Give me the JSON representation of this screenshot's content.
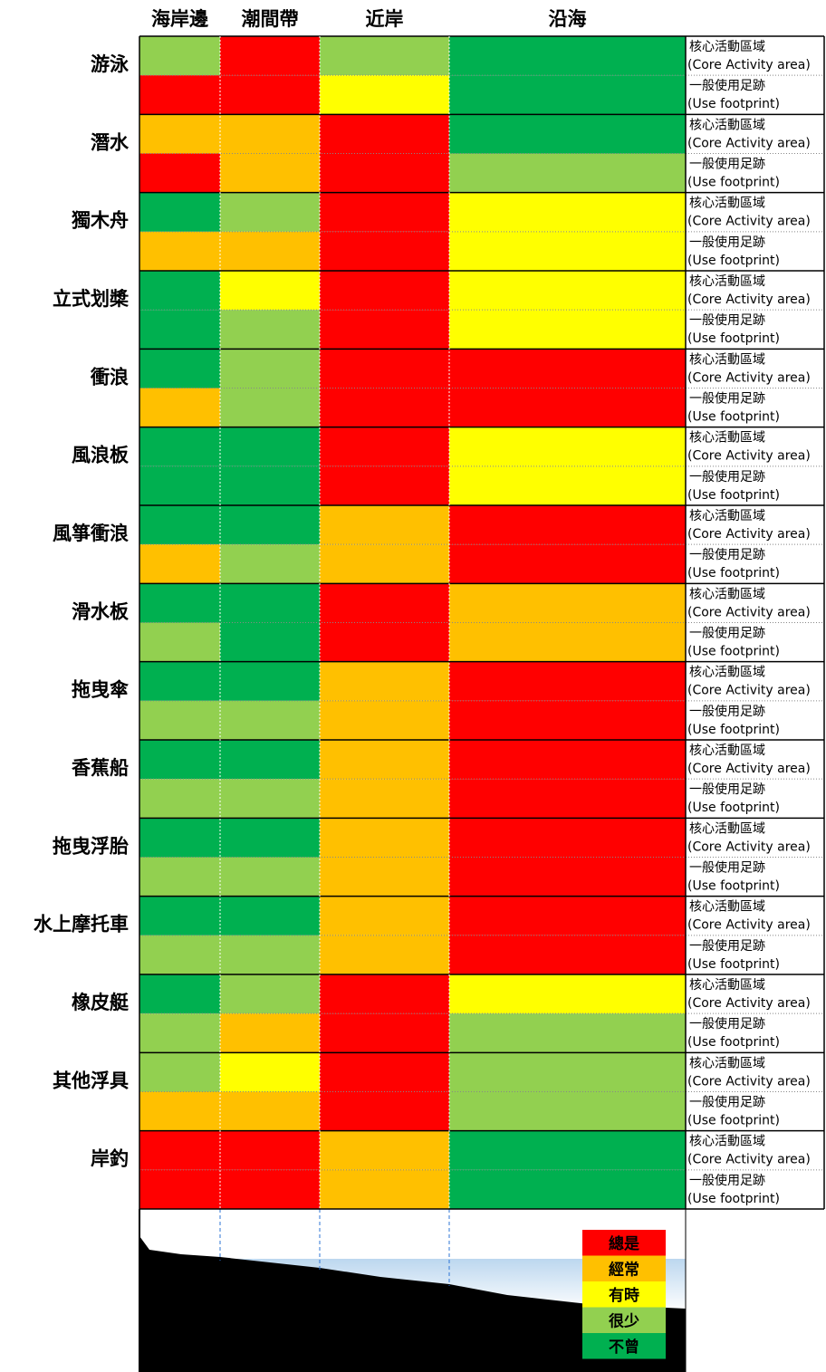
{
  "columns": [
    "海岸邊",
    "潮間帶",
    "近岸",
    "沿海"
  ],
  "row_types": [
    {
      "line1": "核心活動區域",
      "line2": "(Core Activity area)"
    },
    {
      "line1": "一般使用足跡",
      "line2": "(Use footprint)"
    }
  ],
  "legend": [
    {
      "label": "總是",
      "color": "#ff0000"
    },
    {
      "label": "經常",
      "color": "#ffc000"
    },
    {
      "label": "有時",
      "color": "#ffff00"
    },
    {
      "label": "很少",
      "color": "#92d050"
    },
    {
      "label": "不曾",
      "color": "#00b050"
    }
  ],
  "activities": [
    {
      "name": "游泳",
      "cells": [
        [
          "#92d050",
          "#ff0000",
          "#92d050",
          "#00b050"
        ],
        [
          "#ff0000",
          "#ff0000",
          "#ffff00",
          "#00b050"
        ]
      ]
    },
    {
      "name": "潛水",
      "cells": [
        [
          "#ffc000",
          "#ffc000",
          "#ff0000",
          "#00b050"
        ],
        [
          "#ff0000",
          "#ffc000",
          "#ff0000",
          "#92d050"
        ]
      ]
    },
    {
      "name": "獨木舟",
      "cells": [
        [
          "#00b050",
          "#92d050",
          "#ff0000",
          "#ffff00"
        ],
        [
          "#ffc000",
          "#ffc000",
          "#ff0000",
          "#ffff00"
        ]
      ]
    },
    {
      "name": "立式划槳",
      "cells": [
        [
          "#00b050",
          "#ffff00",
          "#ff0000",
          "#ffff00"
        ],
        [
          "#00b050",
          "#92d050",
          "#ff0000",
          "#ffff00"
        ]
      ]
    },
    {
      "name": "衝浪",
      "cells": [
        [
          "#00b050",
          "#92d050",
          "#ff0000",
          "#ff0000"
        ],
        [
          "#ffc000",
          "#92d050",
          "#ff0000",
          "#ff0000"
        ]
      ]
    },
    {
      "name": "風浪板",
      "cells": [
        [
          "#00b050",
          "#00b050",
          "#ff0000",
          "#ffff00"
        ],
        [
          "#00b050",
          "#00b050",
          "#ff0000",
          "#ffff00"
        ]
      ]
    },
    {
      "name": "風箏衝浪",
      "cells": [
        [
          "#00b050",
          "#00b050",
          "#ffc000",
          "#ff0000"
        ],
        [
          "#ffc000",
          "#92d050",
          "#ffc000",
          "#ff0000"
        ]
      ]
    },
    {
      "name": "滑水板",
      "cells": [
        [
          "#00b050",
          "#00b050",
          "#ff0000",
          "#ffc000"
        ],
        [
          "#92d050",
          "#00b050",
          "#ff0000",
          "#ffc000"
        ]
      ]
    },
    {
      "name": "拖曳傘",
      "cells": [
        [
          "#00b050",
          "#00b050",
          "#ffc000",
          "#ff0000"
        ],
        [
          "#92d050",
          "#92d050",
          "#ffc000",
          "#ff0000"
        ]
      ]
    },
    {
      "name": "香蕉船",
      "cells": [
        [
          "#00b050",
          "#00b050",
          "#ffc000",
          "#ff0000"
        ],
        [
          "#92d050",
          "#92d050",
          "#ffc000",
          "#ff0000"
        ]
      ]
    },
    {
      "name": "拖曳浮胎",
      "cells": [
        [
          "#00b050",
          "#00b050",
          "#ffc000",
          "#ff0000"
        ],
        [
          "#92d050",
          "#92d050",
          "#ffc000",
          "#ff0000"
        ]
      ]
    },
    {
      "name": "水上摩托車",
      "cells": [
        [
          "#00b050",
          "#00b050",
          "#ffc000",
          "#ff0000"
        ],
        [
          "#92d050",
          "#92d050",
          "#ffc000",
          "#ff0000"
        ]
      ]
    },
    {
      "name": "橡皮艇",
      "cells": [
        [
          "#00b050",
          "#92d050",
          "#ff0000",
          "#ffff00"
        ],
        [
          "#92d050",
          "#ffc000",
          "#ff0000",
          "#92d050"
        ]
      ]
    },
    {
      "name": "其他浮具",
      "cells": [
        [
          "#92d050",
          "#ffff00",
          "#ff0000",
          "#92d050"
        ],
        [
          "#ffc000",
          "#ffc000",
          "#ff0000",
          "#92d050"
        ]
      ]
    },
    {
      "name": "岸釣",
      "cells": [
        [
          "#ff0000",
          "#ff0000",
          "#ffc000",
          "#00b050"
        ],
        [
          "#ff0000",
          "#ff0000",
          "#ffc000",
          "#00b050"
        ]
      ]
    }
  ]
}
